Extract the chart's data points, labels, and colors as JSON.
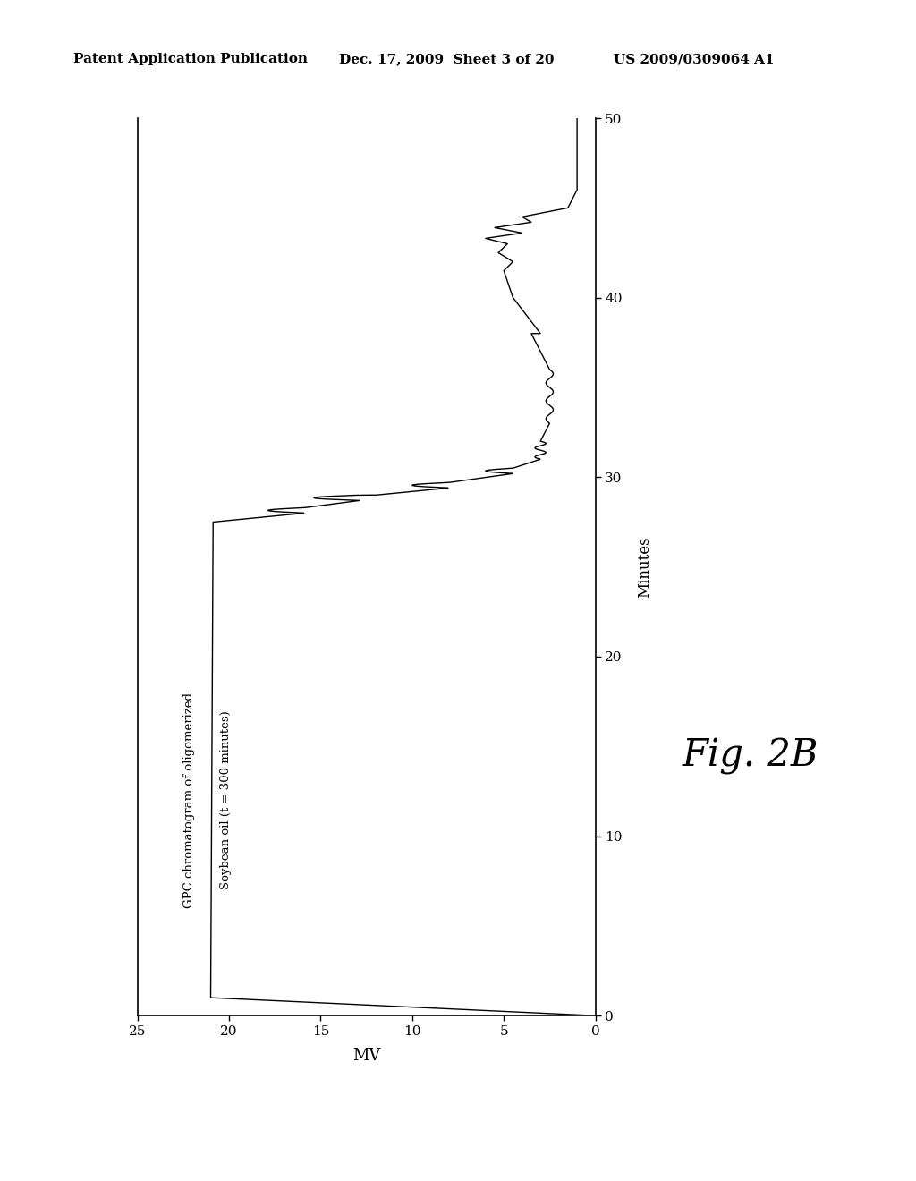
{
  "header_left": "Patent Application Publication",
  "header_center": "Dec. 17, 2009  Sheet 3 of 20",
  "header_right": "US 2009/0309064 A1",
  "fig_label": "Fig. 2B",
  "annotation_line1": "GPC chromatogram of oligomerized",
  "annotation_line2": "Soybean oil (t = 300 minutes)",
  "xlabel": "MV",
  "ylabel": "Minutes",
  "x_ticks": [
    0,
    5,
    10,
    15,
    20,
    25
  ],
  "x_tick_labels": [
    "0",
    "5",
    "10",
    "15",
    "20",
    "25"
  ],
  "y_ticks": [
    0,
    10,
    20,
    30,
    40,
    50
  ],
  "y_tick_labels": [
    "0",
    "10",
    "20",
    "30",
    "40",
    "50"
  ],
  "background_color": "#ffffff",
  "line_color": "#000000",
  "header_fontsize": 11
}
